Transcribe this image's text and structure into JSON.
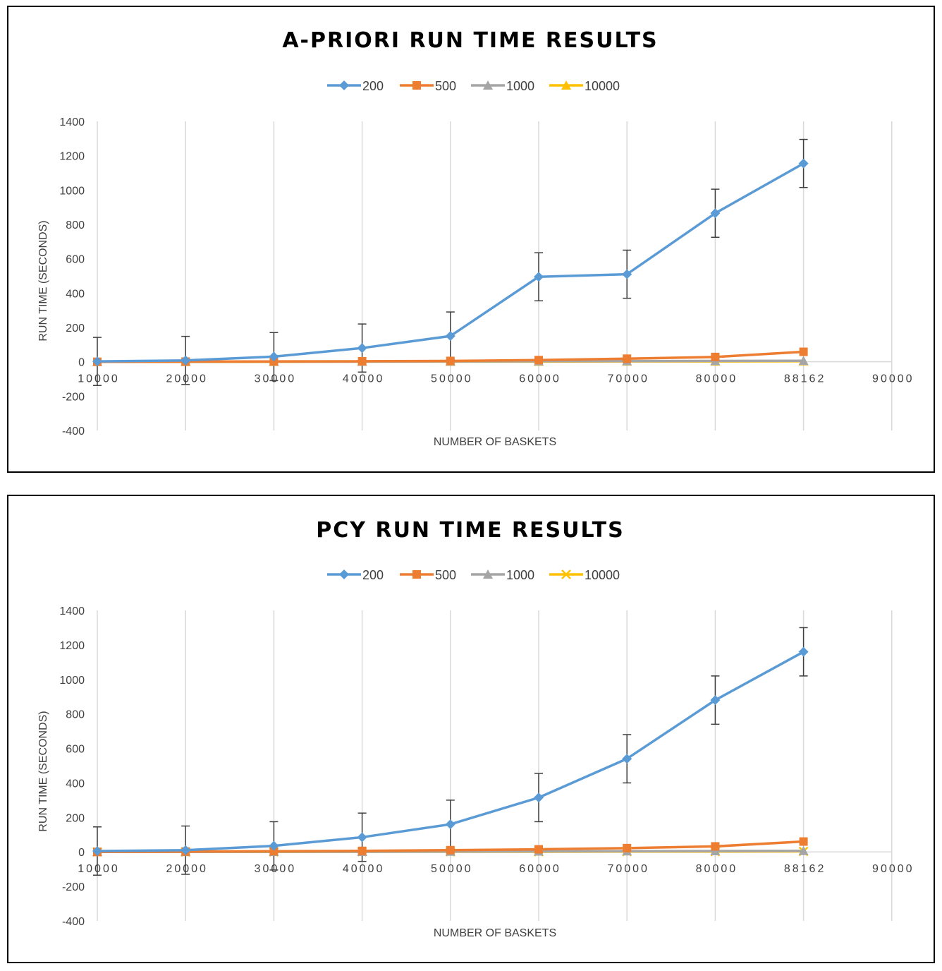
{
  "colors": {
    "grid": "#d9d9d9",
    "zero_line": "#d9d9d9",
    "error_bar": "#404040",
    "text": "#404040",
    "title": "#000000"
  },
  "chart_data": [
    {
      "type": "line",
      "title": "A-PRIORI RUN TIME RESULTS",
      "xlabel": "NUMBER OF BASKETS",
      "ylabel": "RUN TIME (SECONDS)",
      "x_ticks": [
        "10000",
        "20000",
        "30000",
        "40000",
        "50000",
        "60000",
        "70000",
        "80000",
        "88162",
        "90000"
      ],
      "x": [
        10000,
        20000,
        30000,
        40000,
        50000,
        60000,
        70000,
        80000,
        88162
      ],
      "y_ticks": [
        1400,
        1200,
        1000,
        800,
        600,
        400,
        200,
        0,
        -200,
        -400
      ],
      "ylim": [
        -400,
        1400
      ],
      "grid": "vertical",
      "legend": "top-center",
      "error_bars": {
        "series": "200",
        "plus_minus": 140
      },
      "series": [
        {
          "name": "200",
          "color": "#5b9bd5",
          "marker": "diamond",
          "values": [
            2,
            8,
            30,
            80,
            150,
            495,
            510,
            865,
            1155
          ]
        },
        {
          "name": "500",
          "color": "#ed7d31",
          "marker": "square",
          "values": [
            0,
            1,
            2,
            3,
            5,
            10,
            18,
            28,
            58
          ]
        },
        {
          "name": "1000",
          "color": "#a5a5a5",
          "marker": "triangle",
          "values": [
            0,
            0,
            1,
            1,
            2,
            3,
            4,
            5,
            6
          ]
        },
        {
          "name": "10000",
          "color": "#ffc000",
          "marker": "triangle",
          "values": [
            0,
            0,
            0,
            1,
            1,
            1,
            2,
            2,
            3
          ]
        }
      ]
    },
    {
      "type": "line",
      "title": "PCY RUN TIME RESULTS",
      "xlabel": "NUMBER OF BASKETS",
      "ylabel": "RUN TIME (SECONDS)",
      "x_ticks": [
        "10000",
        "20000",
        "30000",
        "40000",
        "50000",
        "60000",
        "70000",
        "80000",
        "88162",
        "90000"
      ],
      "x": [
        10000,
        20000,
        30000,
        40000,
        50000,
        60000,
        70000,
        80000,
        88162
      ],
      "y_ticks": [
        1400,
        1200,
        1000,
        800,
        600,
        400,
        200,
        0,
        -200,
        -400
      ],
      "ylim": [
        -400,
        1400
      ],
      "grid": "vertical",
      "legend": "top-center",
      "error_bars": {
        "series": "200",
        "plus_minus": 140
      },
      "series": [
        {
          "name": "200",
          "color": "#5b9bd5",
          "marker": "diamond",
          "values": [
            5,
            10,
            35,
            85,
            160,
            315,
            540,
            880,
            1160
          ]
        },
        {
          "name": "500",
          "color": "#ed7d31",
          "marker": "square",
          "values": [
            0,
            2,
            4,
            6,
            10,
            15,
            22,
            32,
            60
          ]
        },
        {
          "name": "1000",
          "color": "#a5a5a5",
          "marker": "triangle",
          "values": [
            0,
            0,
            1,
            1,
            2,
            3,
            4,
            5,
            6
          ]
        },
        {
          "name": "10000",
          "color": "#ffc000",
          "marker": "x",
          "values": [
            0,
            0,
            0,
            1,
            1,
            1,
            2,
            2,
            3
          ]
        }
      ]
    }
  ]
}
